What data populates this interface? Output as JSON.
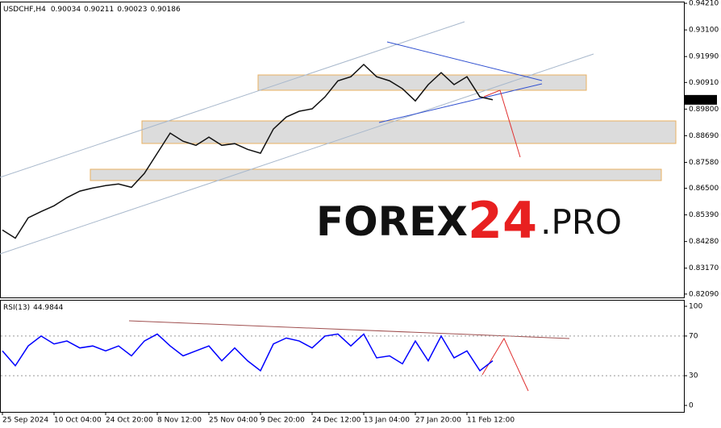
{
  "header": {
    "symbol": "USDCHF,H4",
    "ohlc": [
      0.90034,
      0.90211,
      0.90023,
      0.90186
    ]
  },
  "logo": {
    "brand": "FOREX",
    "number": "24",
    "suffix": ".PRO"
  },
  "chart_data": [
    {
      "type": "line",
      "last_price": 0.90186,
      "series": [
        {
          "color": "#111111",
          "values": [
            0.8476,
            0.8442,
            0.8527,
            0.8553,
            0.8577,
            0.8611,
            0.8638,
            0.8651,
            0.8661,
            0.8668,
            0.8654,
            0.8712,
            0.8796,
            0.888,
            0.8846,
            0.8829,
            0.8863,
            0.8829,
            0.8836,
            0.8812,
            0.8796,
            0.8897,
            0.8947,
            0.8971,
            0.8981,
            0.9031,
            0.9098,
            0.9115,
            0.9166,
            0.9115,
            0.9098,
            0.9065,
            0.9014,
            0.9082,
            0.9132,
            0.9082,
            0.9115,
            0.9031,
            0.9019
          ]
        }
      ],
      "ylim": [
        0.8195,
        0.9428
      ],
      "yticks": [
        {
          "value": 0.9421,
          "label": "0.94210"
        },
        {
          "value": 0.931,
          "label": "0.93100"
        },
        {
          "value": 0.9199,
          "label": "0.91990"
        },
        {
          "value": 0.9091,
          "label": "0.90910"
        },
        {
          "value": 0.898,
          "label": "0.89800"
        },
        {
          "value": 0.8869,
          "label": "0.88690"
        },
        {
          "value": 0.8758,
          "label": "0.87580"
        },
        {
          "value": 0.865,
          "label": "0.86500"
        },
        {
          "value": 0.8539,
          "label": "0.85390"
        },
        {
          "value": 0.8428,
          "label": "0.84280"
        },
        {
          "value": 0.8317,
          "label": "0.83170"
        },
        {
          "value": 0.8209,
          "label": "0.82090"
        }
      ]
    },
    {
      "type": "line",
      "title": "RSI(13)",
      "indicator_value": 44.9844,
      "categories": [
        "25 Sep 2024",
        null,
        null,
        null,
        "10 Oct 04:00",
        null,
        null,
        null,
        "24 Oct 20:00",
        null,
        null,
        null,
        "8 Nov 12:00",
        null,
        null,
        null,
        "25 Nov 04:00",
        null,
        null,
        null,
        "9 Dec 20:00",
        null,
        null,
        null,
        "24 Dec 12:00",
        null,
        null,
        null,
        "13 Jan 04:00",
        null,
        null,
        null,
        "27 Jan 20:00",
        null,
        null,
        null,
        "11 Feb 12:00",
        null,
        null
      ],
      "series": [
        {
          "color": "#0000ff",
          "values": [
            55,
            40,
            60,
            70,
            62,
            65,
            58,
            60,
            55,
            60,
            50,
            65,
            72,
            60,
            50,
            55,
            60,
            45,
            58,
            45,
            35,
            62,
            68,
            65,
            58,
            70,
            72,
            60,
            72,
            48,
            50,
            42,
            65,
            45,
            70,
            48,
            55,
            35,
            45
          ]
        }
      ],
      "ylim": [
        -6.5,
        106.5
      ],
      "yticks": [
        100,
        70,
        30,
        0
      ]
    }
  ]
}
